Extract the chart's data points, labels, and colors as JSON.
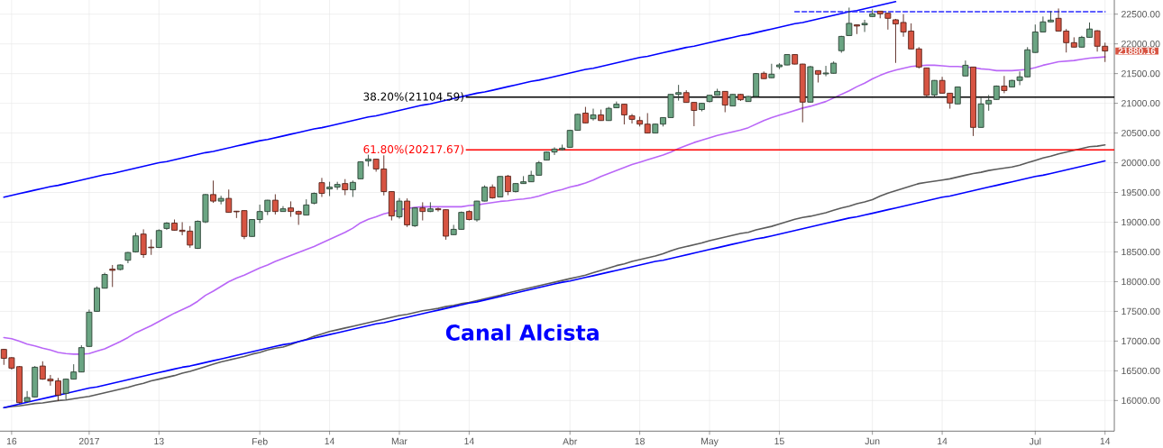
{
  "chart_data": {
    "type": "candlestick",
    "categories": [
      null,
      "16",
      null,
      null,
      null,
      null,
      null,
      null,
      null,
      null,
      null,
      "2017",
      null,
      null,
      null,
      null,
      null,
      null,
      null,
      null,
      "13",
      null,
      null,
      null,
      null,
      null,
      null,
      null,
      null,
      null,
      null,
      null,
      null,
      "Feb",
      null,
      null,
      null,
      null,
      null,
      null,
      null,
      null,
      "14",
      null,
      null,
      null,
      null,
      null,
      null,
      null,
      null,
      "Mar",
      null,
      null,
      null,
      null,
      null,
      null,
      null,
      null,
      "14",
      null,
      null,
      null,
      null,
      null,
      null,
      null,
      null,
      null,
      null,
      null,
      null,
      "Abr",
      null,
      null,
      null,
      null,
      null,
      null,
      null,
      null,
      "18",
      null,
      null,
      null,
      null,
      null,
      null,
      null,
      null,
      "May",
      null,
      null,
      null,
      null,
      null,
      null,
      null,
      null,
      "15",
      null,
      null,
      null,
      null,
      null,
      null,
      null,
      null,
      null,
      null,
      null,
      "Jun",
      null,
      null,
      null,
      null,
      null,
      null,
      null,
      null,
      "14",
      null,
      null,
      null,
      null,
      null,
      null,
      null,
      null,
      null,
      null,
      null,
      "Jul",
      null,
      null,
      null,
      null,
      null,
      null,
      null,
      null,
      "14"
    ],
    "ylim": [
      15485,
      22738
    ],
    "yticks": [
      {
        "value": 16000,
        "label": "16000.00"
      },
      {
        "value": 16500,
        "label": "16500.00"
      },
      {
        "value": 17000,
        "label": "17000.00"
      },
      {
        "value": 17500,
        "label": "17500.00"
      },
      {
        "value": 18000,
        "label": "18000.00"
      },
      {
        "value": 18500,
        "label": "18500.00"
      },
      {
        "value": 19000,
        "label": "19000.00"
      },
      {
        "value": 19500,
        "label": "19500.00"
      },
      {
        "value": 20000,
        "label": "20000.00"
      },
      {
        "value": 20500,
        "label": "20500.00"
      },
      {
        "value": 21000,
        "label": "21000.00"
      },
      {
        "value": 21500,
        "label": "21500.00"
      },
      {
        "value": 22000,
        "label": "22000.00"
      },
      {
        "value": 22500,
        "label": "22500.00"
      }
    ],
    "grid": true,
    "series": [
      {
        "ohlc": [
          [
            16860,
            16870,
            16600,
            16710
          ],
          [
            16720,
            16730,
            16520,
            16545
          ],
          [
            16570,
            16580,
            15950,
            15965
          ],
          [
            15985,
            16160,
            15970,
            16050
          ],
          [
            16060,
            16580,
            16050,
            16560
          ],
          [
            16580,
            16660,
            16350,
            16360
          ],
          [
            16360,
            16430,
            16250,
            16330
          ],
          [
            16330,
            16380,
            15990,
            16090
          ],
          [
            16120,
            16370,
            16020,
            16360
          ],
          [
            16360,
            16610,
            16355,
            16480
          ],
          [
            16480,
            16930,
            16475,
            16890
          ],
          [
            16910,
            17530,
            16900,
            17485
          ],
          [
            17500,
            17920,
            17495,
            17890
          ],
          [
            17890,
            18150,
            17885,
            18120
          ],
          [
            18210,
            18280,
            17910,
            18190
          ],
          [
            18205,
            18290,
            18190,
            18280
          ],
          [
            18360,
            18500,
            18310,
            18490
          ],
          [
            18500,
            18820,
            18490,
            18770
          ],
          [
            18800,
            18880,
            18400,
            18455
          ],
          [
            18580,
            18710,
            18450,
            18570
          ],
          [
            18575,
            18880,
            18565,
            18860
          ],
          [
            18895,
            19000,
            18870,
            18985
          ],
          [
            18985,
            19045,
            18860,
            18865
          ],
          [
            18865,
            19000,
            18780,
            18845
          ],
          [
            18850,
            18935,
            18570,
            18615
          ],
          [
            18560,
            19030,
            18550,
            19015
          ],
          [
            19005,
            19475,
            18985,
            19465
          ],
          [
            19465,
            19700,
            19325,
            19355
          ],
          [
            19355,
            19445,
            19300,
            19400
          ],
          [
            19400,
            19550,
            19160,
            19165
          ],
          [
            19185,
            19190,
            19070,
            19175
          ],
          [
            19195,
            19200,
            18715,
            18760
          ],
          [
            18760,
            19050,
            18755,
            19045
          ],
          [
            19045,
            19295,
            18985,
            19180
          ],
          [
            19180,
            19375,
            19120,
            19370
          ],
          [
            19370,
            19470,
            19130,
            19180
          ],
          [
            19180,
            19270,
            19175,
            19225
          ],
          [
            19240,
            19350,
            19090,
            19180
          ],
          [
            19180,
            19195,
            18955,
            19135
          ],
          [
            19120,
            19385,
            19115,
            19290
          ],
          [
            19320,
            19500,
            19300,
            19485
          ],
          [
            19665,
            19745,
            19425,
            19485
          ],
          [
            19560,
            19680,
            19440,
            19590
          ],
          [
            19590,
            19680,
            19545,
            19635
          ],
          [
            19650,
            19725,
            19455,
            19545
          ],
          [
            19545,
            19700,
            19425,
            19670
          ],
          [
            19730,
            20025,
            19725,
            20015
          ],
          [
            20030,
            20135,
            19940,
            20060
          ],
          [
            20060,
            20065,
            19850,
            19895
          ],
          [
            19895,
            20125,
            19450,
            19515
          ],
          [
            19515,
            19520,
            19030,
            19105
          ],
          [
            19090,
            19405,
            19060,
            19355
          ],
          [
            19355,
            19400,
            18920,
            18955
          ],
          [
            18940,
            19250,
            18920,
            19240
          ],
          [
            19240,
            19335,
            19030,
            19180
          ],
          [
            19180,
            19335,
            19170,
            19225
          ],
          [
            19225,
            19245,
            19180,
            19210
          ],
          [
            19210,
            19215,
            18705,
            18765
          ],
          [
            18790,
            18955,
            18785,
            18880
          ],
          [
            18880,
            19180,
            18875,
            19165
          ],
          [
            19180,
            19200,
            19030,
            19045
          ],
          [
            19040,
            19360,
            19010,
            19355
          ],
          [
            19355,
            19620,
            19350,
            19590
          ],
          [
            19590,
            19635,
            19395,
            19410
          ],
          [
            19425,
            19775,
            19420,
            19770
          ],
          [
            19775,
            19795,
            19455,
            19515
          ],
          [
            19515,
            19660,
            19500,
            19650
          ],
          [
            19650,
            19775,
            19645,
            19680
          ],
          [
            19680,
            19865,
            19675,
            19790
          ],
          [
            19790,
            20030,
            19785,
            20000
          ],
          [
            20045,
            20190,
            20040,
            20180
          ],
          [
            20180,
            20260,
            20130,
            20230
          ],
          [
            20220,
            20305,
            20205,
            20245
          ],
          [
            20260,
            20555,
            20255,
            20545
          ],
          [
            20545,
            20825,
            20540,
            20815
          ],
          [
            20835,
            20940,
            20665,
            20670
          ],
          [
            20740,
            20910,
            20710,
            20805
          ],
          [
            20805,
            20895,
            20705,
            20710
          ],
          [
            20710,
            20940,
            20705,
            20915
          ],
          [
            20925,
            21030,
            20920,
            20985
          ],
          [
            20985,
            20990,
            20645,
            20805
          ],
          [
            20790,
            20820,
            20660,
            20730
          ],
          [
            20710,
            20775,
            20610,
            20650
          ],
          [
            20650,
            20835,
            20495,
            20500
          ],
          [
            20500,
            20660,
            20495,
            20650
          ],
          [
            20650,
            20765,
            20610,
            20760
          ],
          [
            20760,
            21160,
            20755,
            21150
          ],
          [
            21150,
            21310,
            21045,
            21180
          ],
          [
            21180,
            21220,
            21010,
            21015
          ],
          [
            21015,
            21020,
            20615,
            20880
          ],
          [
            20895,
            21005,
            20865,
            21000
          ],
          [
            21030,
            21140,
            21015,
            21135
          ],
          [
            21135,
            21245,
            21130,
            21200
          ],
          [
            21200,
            21205,
            20850,
            20970
          ],
          [
            20955,
            21155,
            20950,
            21150
          ],
          [
            21150,
            21160,
            21040,
            21060
          ],
          [
            21030,
            21125,
            21025,
            21115
          ],
          [
            21115,
            21510,
            21110,
            21500
          ],
          [
            21505,
            21535,
            21410,
            21415
          ],
          [
            21430,
            21665,
            21425,
            21490
          ],
          [
            21615,
            21675,
            21575,
            21645
          ],
          [
            21645,
            21825,
            21640,
            21820
          ],
          [
            21820,
            21825,
            21655,
            21660
          ],
          [
            21660,
            21665,
            20680,
            21020
          ],
          [
            21020,
            21630,
            21015,
            21615
          ],
          [
            21550,
            21555,
            21350,
            21490
          ],
          [
            21495,
            21630,
            21455,
            21510
          ],
          [
            21505,
            21705,
            21500,
            21675
          ],
          [
            21885,
            22135,
            21850,
            22125
          ],
          [
            22140,
            22610,
            22135,
            22345
          ],
          [
            22320,
            22325,
            22165,
            22300
          ],
          [
            22320,
            22405,
            22200,
            22345
          ],
          [
            22460,
            22580,
            22455,
            22505
          ],
          [
            22550,
            22555,
            22430,
            22505
          ],
          [
            22515,
            22520,
            22240,
            22430
          ],
          [
            22405,
            22420,
            21680,
            22335
          ],
          [
            22360,
            22500,
            22120,
            22200
          ],
          [
            22215,
            22345,
            21910,
            21915
          ],
          [
            21915,
            21945,
            21585,
            21610
          ],
          [
            21595,
            21600,
            21110,
            21135
          ],
          [
            21140,
            21390,
            21110,
            21385
          ],
          [
            21385,
            21445,
            21165,
            21170
          ],
          [
            21170,
            21175,
            20910,
            21005
          ],
          [
            20990,
            21280,
            20985,
            21275
          ],
          [
            21460,
            21720,
            21455,
            21640
          ],
          [
            21610,
            21615,
            20450,
            20595
          ],
          [
            20595,
            21095,
            20590,
            20990
          ],
          [
            20990,
            21140,
            20875,
            21050
          ],
          [
            21065,
            21300,
            21060,
            21290
          ],
          [
            21290,
            21460,
            21170,
            21215
          ],
          [
            21275,
            21395,
            21270,
            21385
          ],
          [
            21385,
            21535,
            21305,
            21445
          ],
          [
            21445,
            21945,
            21440,
            21900
          ],
          [
            21855,
            22325,
            21850,
            22200
          ],
          [
            22200,
            22460,
            22195,
            22370
          ],
          [
            22370,
            22550,
            22365,
            22400
          ],
          [
            22430,
            22595,
            22210,
            22215
          ],
          [
            22215,
            22250,
            21855,
            22020
          ],
          [
            22020,
            22110,
            21940,
            21945
          ],
          [
            21945,
            22135,
            21940,
            22110
          ],
          [
            22110,
            22360,
            22105,
            22250
          ],
          [
            22220,
            22230,
            21870,
            21960
          ],
          [
            21960,
            22020,
            21695,
            21880.16
          ]
        ],
        "colors": [
          "#d75442",
          "#d75442",
          "#d75442",
          "#6ba583",
          "#6ba583",
          "#d75442",
          "#d75442",
          "#d75442",
          "#6ba583",
          "#6ba583",
          "#6ba583",
          "#6ba583",
          "#6ba583",
          "#6ba583",
          "#d75442",
          "#6ba583",
          "#6ba583",
          "#6ba583",
          "#d75442",
          "#d75442",
          "#6ba583",
          "#6ba583",
          "#d75442",
          "#d75442",
          "#d75442",
          "#6ba583",
          "#6ba583",
          "#d75442",
          "#6ba583",
          "#d75442",
          "#d75442",
          "#d75442",
          "#6ba583",
          "#6ba583",
          "#6ba583",
          "#d75442",
          "#6ba583",
          "#d75442",
          "#d75442",
          "#6ba583",
          "#6ba583",
          "#d75442",
          "#6ba583",
          "#6ba583",
          "#d75442",
          "#6ba583",
          "#6ba583",
          "#6ba583",
          "#d75442",
          "#d75442",
          "#d75442",
          "#6ba583",
          "#d75442",
          "#6ba583",
          "#d75442",
          "#6ba583",
          "#d75442",
          "#d75442",
          "#6ba583",
          "#6ba583",
          "#d75442",
          "#6ba583",
          "#6ba583",
          "#d75442",
          "#6ba583",
          "#d75442",
          "#6ba583",
          "#6ba583",
          "#6ba583",
          "#6ba583",
          "#6ba583",
          "#6ba583",
          "#6ba583",
          "#6ba583",
          "#6ba583",
          "#d75442",
          "#6ba583",
          "#d75442",
          "#6ba583",
          "#6ba583",
          "#d75442",
          "#d75442",
          "#d75442",
          "#d75442",
          "#6ba583",
          "#6ba583",
          "#6ba583",
          "#6ba583",
          "#d75442",
          "#d75442",
          "#6ba583",
          "#6ba583",
          "#6ba583",
          "#d75442",
          "#6ba583",
          "#d75442",
          "#6ba583",
          "#6ba583",
          "#d75442",
          "#6ba583",
          "#6ba583",
          "#6ba583",
          "#d75442",
          "#d75442",
          "#6ba583",
          "#d75442",
          "#6ba583",
          "#6ba583",
          "#6ba583",
          "#6ba583",
          "#d75442",
          "#6ba583",
          "#6ba583",
          "#d75442",
          "#d75442",
          "#d75442",
          "#d75442",
          "#d75442",
          "#d75442",
          "#d75442",
          "#6ba583",
          "#d75442",
          "#d75442",
          "#6ba583",
          "#6ba583",
          "#d75442",
          "#6ba583",
          "#6ba583",
          "#6ba583",
          "#d75442",
          "#6ba583",
          "#6ba583",
          "#6ba583",
          "#6ba583",
          "#6ba583",
          "#6ba583",
          "#d75442",
          "#d75442",
          "#d75442",
          "#6ba583",
          "#6ba583",
          "#d75442",
          "#d75442"
        ]
      },
      {
        "type": "line",
        "color": "#b966f7",
        "values": [
          17060,
          17040,
          17000,
          16950,
          16920,
          16880,
          16850,
          16810,
          16790,
          16780,
          16780,
          16790,
          16830,
          16870,
          16930,
          16990,
          17060,
          17140,
          17200,
          17260,
          17330,
          17400,
          17470,
          17530,
          17590,
          17670,
          17770,
          17840,
          17920,
          18000,
          18060,
          18110,
          18170,
          18230,
          18280,
          18340,
          18390,
          18440,
          18490,
          18540,
          18590,
          18650,
          18710,
          18770,
          18830,
          18900,
          18990,
          19050,
          19090,
          19140,
          19170,
          19210,
          19230,
          19250,
          19260,
          19260,
          19260,
          19260,
          19260,
          19260,
          19280,
          19290,
          19310,
          19330,
          19350,
          19360,
          19380,
          19390,
          19410,
          19440,
          19480,
          19520,
          19550,
          19590,
          19620,
          19660,
          19710,
          19770,
          19820,
          19870,
          19920,
          19970,
          20010,
          20050,
          20090,
          20130,
          20180,
          20240,
          20290,
          20340,
          20380,
          20420,
          20460,
          20490,
          20520,
          20550,
          20590,
          20650,
          20710,
          20760,
          20800,
          20840,
          20880,
          20920,
          20950,
          20990,
          21030,
          21090,
          21150,
          21210,
          21280,
          21340,
          21410,
          21470,
          21520,
          21560,
          21590,
          21620,
          21630,
          21640,
          21640,
          21630,
          21620,
          21620,
          21610,
          21600,
          21580,
          21570,
          21550,
          21550,
          21550,
          21560,
          21570,
          21600,
          21640,
          21670,
          21700,
          21710,
          21720,
          21740,
          21760,
          21770,
          21780
        ]
      },
      {
        "type": "line",
        "color": "#5a5a5a",
        "values": [
          15880,
          15900,
          15910,
          15930,
          15950,
          15960,
          15980,
          16000,
          16010,
          16030,
          16050,
          16070,
          16100,
          16130,
          16160,
          16190,
          16220,
          16260,
          16290,
          16330,
          16360,
          16390,
          16420,
          16460,
          16490,
          16530,
          16570,
          16610,
          16650,
          16680,
          16710,
          16740,
          16780,
          16810,
          16850,
          16880,
          16900,
          16940,
          16990,
          17030,
          17080,
          17120,
          17160,
          17190,
          17220,
          17250,
          17280,
          17310,
          17340,
          17370,
          17400,
          17430,
          17450,
          17480,
          17510,
          17530,
          17550,
          17580,
          17600,
          17630,
          17650,
          17680,
          17710,
          17740,
          17770,
          17810,
          17840,
          17870,
          17900,
          17930,
          17960,
          17990,
          18020,
          18050,
          18080,
          18110,
          18150,
          18190,
          18230,
          18270,
          18300,
          18340,
          18370,
          18400,
          18430,
          18470,
          18520,
          18560,
          18590,
          18620,
          18650,
          18690,
          18720,
          18750,
          18780,
          18810,
          18830,
          18870,
          18900,
          18930,
          18970,
          19010,
          19050,
          19080,
          19100,
          19130,
          19160,
          19200,
          19240,
          19270,
          19310,
          19340,
          19380,
          19440,
          19490,
          19530,
          19570,
          19610,
          19650,
          19670,
          19690,
          19710,
          19730,
          19760,
          19790,
          19820,
          19840,
          19870,
          19890,
          19910,
          19930,
          19960,
          20000,
          20040,
          20080,
          20110,
          20150,
          20180,
          20210,
          20240,
          20270,
          20280,
          20300
        ]
      },
      {
        "type": "line",
        "color": "#0000ff",
        "values": [
          19420,
          19450,
          19480,
          19510,
          19540,
          19570,
          19600,
          19620,
          19650,
          19680,
          19710,
          19740,
          19770,
          19800,
          19820,
          19850,
          19880,
          19910,
          19940,
          19970,
          20000,
          20020,
          20050,
          20080,
          20110,
          20140,
          20170,
          20190,
          20220,
          20250,
          20280,
          20310,
          20340,
          20370,
          20390,
          20420,
          20450,
          20480,
          20510,
          20540,
          20570,
          20590,
          20620,
          20650,
          20680,
          20710,
          20740,
          20770,
          20790,
          20820,
          20850,
          20880,
          20910,
          20940,
          20970,
          20990,
          21020,
          21050,
          21080,
          21110,
          21140,
          21170,
          21190,
          21220,
          21250,
          21280,
          21310,
          21340,
          21370,
          21390,
          21420,
          21450,
          21480,
          21510,
          21540,
          21570,
          21590,
          21620,
          21650,
          21680,
          21710,
          21740,
          21770,
          21790,
          21820,
          21850,
          21880,
          21910,
          21940,
          21960,
          21990,
          22020,
          22050,
          22080,
          22110,
          22140,
          22160,
          22190,
          22220,
          22250,
          22280,
          22310,
          22340,
          22360,
          22390,
          22420,
          22450,
          22480,
          22510,
          22540,
          22560,
          22590,
          22620,
          22650,
          22680,
          22710,
          null,
          null,
          null,
          null,
          null,
          null,
          null,
          null,
          null,
          null,
          null,
          null,
          null,
          null,
          null,
          null,
          null,
          null,
          null,
          null,
          null,
          null,
          null,
          null,
          null,
          null,
          null
        ]
      },
      {
        "type": "line",
        "color": "#0000ff",
        "values": [
          15880,
          15910,
          15940,
          15970,
          16000,
          16030,
          16060,
          16090,
          16120,
          16150,
          16180,
          16210,
          16230,
          16260,
          16290,
          16320,
          16350,
          16380,
          16410,
          16440,
          16470,
          16500,
          16530,
          16560,
          16580,
          16610,
          16640,
          16670,
          16700,
          16730,
          16760,
          16790,
          16820,
          16850,
          16880,
          16910,
          16940,
          16960,
          16990,
          17020,
          17050,
          17080,
          17110,
          17140,
          17170,
          17200,
          17230,
          17260,
          17290,
          17310,
          17340,
          17370,
          17400,
          17430,
          17460,
          17490,
          17520,
          17550,
          17580,
          17610,
          17640,
          17660,
          17690,
          17720,
          17750,
          17780,
          17810,
          17840,
          17870,
          17900,
          17930,
          17960,
          17990,
          18010,
          18040,
          18070,
          18100,
          18130,
          18160,
          18190,
          18220,
          18250,
          18280,
          18310,
          18340,
          18360,
          18390,
          18420,
          18450,
          18480,
          18510,
          18540,
          18570,
          18600,
          18630,
          18660,
          18690,
          18720,
          18740,
          18770,
          18800,
          18830,
          18860,
          18890,
          18920,
          18950,
          18980,
          19010,
          19040,
          19070,
          19090,
          19120,
          19150,
          19180,
          19210,
          19240,
          19270,
          19300,
          19330,
          19360,
          19390,
          19420,
          19440,
          19470,
          19500,
          19530,
          19560,
          19590,
          19620,
          19650,
          19680,
          19710,
          19740,
          19770,
          19790,
          19820,
          19850,
          19880,
          19910,
          19940,
          19970,
          20000,
          20030
        ]
      },
      {
        "type": "line",
        "color": "#2a2aff",
        "line_style": "dashed",
        "values": [
          null,
          null,
          null,
          null,
          null,
          null,
          null,
          null,
          null,
          null,
          null,
          null,
          null,
          null,
          null,
          null,
          null,
          null,
          null,
          null,
          null,
          null,
          null,
          null,
          null,
          null,
          null,
          null,
          null,
          null,
          null,
          null,
          null,
          null,
          null,
          null,
          null,
          null,
          null,
          null,
          null,
          null,
          null,
          null,
          null,
          null,
          null,
          null,
          null,
          null,
          null,
          null,
          null,
          null,
          null,
          null,
          null,
          null,
          null,
          null,
          null,
          null,
          null,
          null,
          null,
          null,
          null,
          null,
          null,
          null,
          null,
          null,
          null,
          null,
          null,
          null,
          null,
          null,
          null,
          null,
          null,
          null,
          null,
          null,
          null,
          null,
          null,
          null,
          null,
          null,
          null,
          null,
          null,
          null,
          null,
          null,
          null,
          null,
          null,
          null,
          null,
          null,
          22540,
          22540,
          22540,
          22540,
          22540,
          22540,
          22540,
          22540,
          22540,
          22540,
          22540,
          22540,
          22540,
          22540,
          22540,
          22540,
          22540,
          22540,
          22540,
          22540,
          22540,
          22540,
          22540,
          22540,
          22540,
          22540,
          22540,
          22540,
          22540,
          22540,
          22540,
          22540,
          22540,
          22540,
          22540,
          22540,
          22540,
          22540,
          22540,
          22540,
          22540
        ]
      }
    ],
    "ref_lines": [
      {
        "axis": "y",
        "value": 21104.59,
        "label": "38.20%(21104.59)",
        "color": "#000000"
      },
      {
        "axis": "y",
        "value": 20217.67,
        "label": "61.80%(20217.67)",
        "color": "#ff0000"
      }
    ],
    "annotations": [
      "Canal Alcista",
      "21880.16"
    ]
  }
}
